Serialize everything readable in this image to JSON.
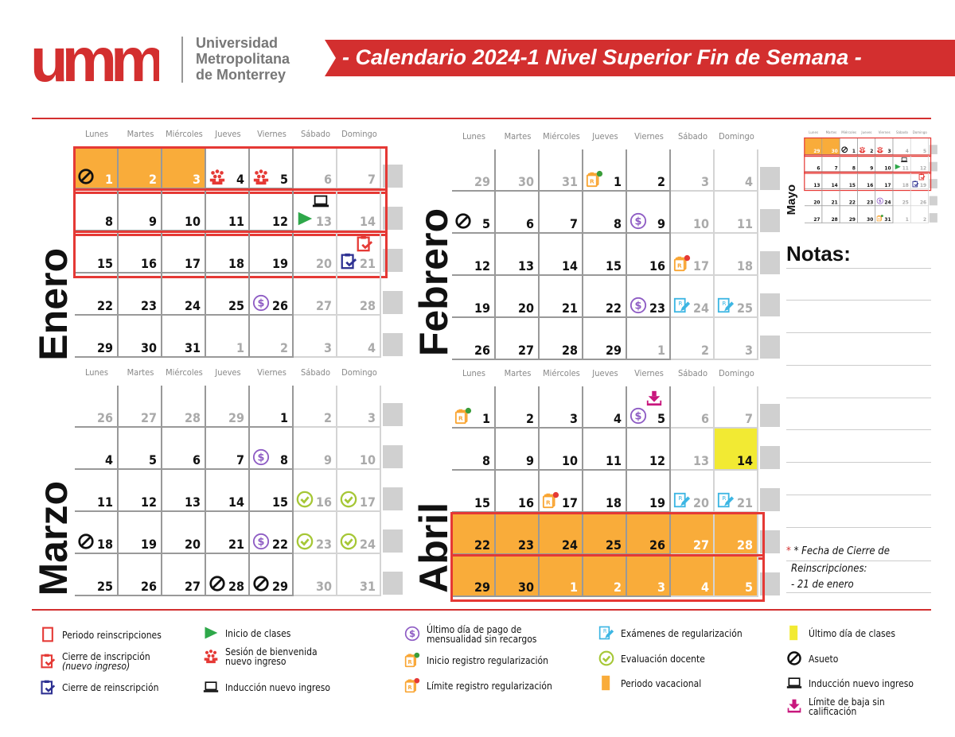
{
  "header": {
    "logo_text": "umm",
    "university": [
      "Universidad",
      "Metropolitana",
      "de Monterrey"
    ],
    "title": "- Calendario 2024-1 Nivel Superior Fin de Semana -"
  },
  "colors": {
    "brand_red": "#d32f2f",
    "vacation": "#f9ac3a",
    "last_day": "#f2ea33",
    "reinscription_outline": "#e53935"
  },
  "weekdays": [
    "Lunes",
    "Martes",
    "Miércoles",
    "Jueves",
    "Viernes",
    "Sábado",
    "Domingo"
  ],
  "months": [
    {
      "name": "Enero",
      "weeks": [
        {
          "reinsc": true,
          "days": [
            {
              "d": "1",
              "tone": "white",
              "fill": "vac",
              "icons": [
                "asueto"
              ]
            },
            {
              "d": "2",
              "tone": "white",
              "fill": "vac"
            },
            {
              "d": "3",
              "tone": "white",
              "fill": "vac"
            },
            {
              "d": "4",
              "icons": [
                "bienvenida"
              ]
            },
            {
              "d": "5",
              "icons": [
                "bienvenida"
              ]
            },
            {
              "d": "6",
              "tone": "gray"
            },
            {
              "d": "7",
              "tone": "gray"
            }
          ]
        },
        {
          "reinsc": true,
          "days": [
            {
              "d": "8"
            },
            {
              "d": "9"
            },
            {
              "d": "10"
            },
            {
              "d": "11"
            },
            {
              "d": "12"
            },
            {
              "d": "13",
              "tone": "gray",
              "icons": [
                "inicio-clases",
                "induccion"
              ]
            },
            {
              "d": "14",
              "tone": "gray"
            }
          ]
        },
        {
          "reinsc": true,
          "days": [
            {
              "d": "15"
            },
            {
              "d": "16"
            },
            {
              "d": "17"
            },
            {
              "d": "18"
            },
            {
              "d": "19"
            },
            {
              "d": "20",
              "tone": "gray"
            },
            {
              "d": "21",
              "tone": "gray",
              "icons": [
                "cierre-reinscripcion",
                "cierre-inscripcion"
              ]
            }
          ]
        },
        {
          "days": [
            {
              "d": "22"
            },
            {
              "d": "23"
            },
            {
              "d": "24"
            },
            {
              "d": "25"
            },
            {
              "d": "26",
              "icons": [
                "pago"
              ]
            },
            {
              "d": "27",
              "tone": "gray"
            },
            {
              "d": "28",
              "tone": "gray"
            }
          ]
        },
        {
          "days": [
            {
              "d": "29"
            },
            {
              "d": "30"
            },
            {
              "d": "31"
            },
            {
              "d": "1",
              "tone": "gray"
            },
            {
              "d": "2",
              "tone": "gray"
            },
            {
              "d": "3",
              "tone": "gray"
            },
            {
              "d": "4",
              "tone": "gray"
            }
          ]
        }
      ]
    },
    {
      "name": "Febrero",
      "weeks": [
        {
          "days": [
            {
              "d": "29",
              "tone": "gray"
            },
            {
              "d": "30",
              "tone": "gray"
            },
            {
              "d": "31",
              "tone": "gray"
            },
            {
              "d": "1",
              "icons": [
                "inicio-reg"
              ]
            },
            {
              "d": "2"
            },
            {
              "d": "3",
              "tone": "gray"
            },
            {
              "d": "4",
              "tone": "gray"
            }
          ]
        },
        {
          "days": [
            {
              "d": "5",
              "icons": [
                "asueto"
              ]
            },
            {
              "d": "6"
            },
            {
              "d": "7"
            },
            {
              "d": "8"
            },
            {
              "d": "9",
              "icons": [
                "pago"
              ]
            },
            {
              "d": "10",
              "tone": "gray"
            },
            {
              "d": "11",
              "tone": "gray"
            }
          ]
        },
        {
          "days": [
            {
              "d": "12"
            },
            {
              "d": "13"
            },
            {
              "d": "14"
            },
            {
              "d": "15"
            },
            {
              "d": "16"
            },
            {
              "d": "17",
              "tone": "gray",
              "icons": [
                "limite-reg"
              ]
            },
            {
              "d": "18",
              "tone": "gray"
            }
          ]
        },
        {
          "days": [
            {
              "d": "19"
            },
            {
              "d": "20"
            },
            {
              "d": "21"
            },
            {
              "d": "22"
            },
            {
              "d": "23",
              "icons": [
                "pago"
              ]
            },
            {
              "d": "24",
              "tone": "gray",
              "icons": [
                "examen"
              ]
            },
            {
              "d": "25",
              "tone": "gray",
              "icons": [
                "examen"
              ]
            }
          ]
        },
        {
          "days": [
            {
              "d": "26"
            },
            {
              "d": "27"
            },
            {
              "d": "28"
            },
            {
              "d": "29"
            },
            {
              "d": "1",
              "tone": "gray"
            },
            {
              "d": "2",
              "tone": "gray"
            },
            {
              "d": "3",
              "tone": "gray"
            }
          ]
        }
      ]
    },
    {
      "name": "Marzo",
      "weeks": [
        {
          "days": [
            {
              "d": "26",
              "tone": "gray"
            },
            {
              "d": "27",
              "tone": "gray"
            },
            {
              "d": "28",
              "tone": "gray"
            },
            {
              "d": "29",
              "tone": "gray"
            },
            {
              "d": "1"
            },
            {
              "d": "2",
              "tone": "gray"
            },
            {
              "d": "3",
              "tone": "gray"
            }
          ]
        },
        {
          "days": [
            {
              "d": "4"
            },
            {
              "d": "5"
            },
            {
              "d": "6"
            },
            {
              "d": "7"
            },
            {
              "d": "8",
              "icons": [
                "pago"
              ]
            },
            {
              "d": "9",
              "tone": "gray"
            },
            {
              "d": "10",
              "tone": "gray"
            }
          ]
        },
        {
          "days": [
            {
              "d": "11"
            },
            {
              "d": "12"
            },
            {
              "d": "13"
            },
            {
              "d": "14"
            },
            {
              "d": "15"
            },
            {
              "d": "16",
              "tone": "gray",
              "icons": [
                "evaluacion"
              ]
            },
            {
              "d": "17",
              "tone": "gray",
              "icons": [
                "evaluacion"
              ]
            }
          ]
        },
        {
          "days": [
            {
              "d": "18",
              "icons": [
                "asueto"
              ]
            },
            {
              "d": "19"
            },
            {
              "d": "20"
            },
            {
              "d": "21"
            },
            {
              "d": "22",
              "icons": [
                "pago"
              ]
            },
            {
              "d": "23",
              "tone": "gray",
              "icons": [
                "evaluacion"
              ]
            },
            {
              "d": "24",
              "tone": "gray",
              "icons": [
                "evaluacion"
              ]
            }
          ]
        },
        {
          "days": [
            {
              "d": "25"
            },
            {
              "d": "26"
            },
            {
              "d": "27"
            },
            {
              "d": "28",
              "icons": [
                "asueto"
              ]
            },
            {
              "d": "29",
              "icons": [
                "asueto"
              ]
            },
            {
              "d": "30",
              "tone": "gray"
            },
            {
              "d": "31",
              "tone": "gray"
            }
          ]
        }
      ]
    },
    {
      "name": "Abril",
      "weeks": [
        {
          "days": [
            {
              "d": "1",
              "icons": [
                "inicio-reg"
              ]
            },
            {
              "d": "2"
            },
            {
              "d": "3"
            },
            {
              "d": "4"
            },
            {
              "d": "5",
              "icons": [
                "pago",
                "baja"
              ]
            },
            {
              "d": "6",
              "tone": "gray"
            },
            {
              "d": "7",
              "tone": "gray"
            }
          ]
        },
        {
          "days": [
            {
              "d": "8"
            },
            {
              "d": "9"
            },
            {
              "d": "10"
            },
            {
              "d": "11"
            },
            {
              "d": "12"
            },
            {
              "d": "13",
              "tone": "gray"
            },
            {
              "d": "14",
              "fill": "last"
            }
          ]
        },
        {
          "days": [
            {
              "d": "15"
            },
            {
              "d": "16"
            },
            {
              "d": "17",
              "icons": [
                "limite-reg"
              ]
            },
            {
              "d": "18"
            },
            {
              "d": "19"
            },
            {
              "d": "20",
              "tone": "gray",
              "icons": [
                "examen"
              ]
            },
            {
              "d": "21",
              "tone": "gray",
              "icons": [
                "examen"
              ]
            }
          ]
        },
        {
          "reinsc": true,
          "days": [
            {
              "d": "22",
              "fill": "vac"
            },
            {
              "d": "23",
              "fill": "vac"
            },
            {
              "d": "24",
              "fill": "vac"
            },
            {
              "d": "25",
              "fill": "vac"
            },
            {
              "d": "26",
              "fill": "vac"
            },
            {
              "d": "27",
              "tone": "white",
              "fill": "vac"
            },
            {
              "d": "28",
              "tone": "white",
              "fill": "vac"
            }
          ]
        },
        {
          "reinsc": true,
          "days": [
            {
              "d": "29",
              "fill": "vac"
            },
            {
              "d": "30",
              "fill": "vac"
            },
            {
              "d": "1",
              "tone": "white",
              "fill": "vac"
            },
            {
              "d": "2",
              "tone": "white",
              "fill": "vac"
            },
            {
              "d": "3",
              "tone": "white",
              "fill": "vac"
            },
            {
              "d": "4",
              "tone": "white",
              "fill": "vac"
            },
            {
              "d": "5",
              "tone": "white",
              "fill": "vac"
            }
          ]
        }
      ]
    },
    {
      "name": "Mayo",
      "weeks": [
        {
          "reinsc": true,
          "days": [
            {
              "d": "29",
              "tone": "white",
              "fill": "vac"
            },
            {
              "d": "30",
              "tone": "white",
              "fill": "vac"
            },
            {
              "d": "1",
              "icons": [
                "asueto"
              ]
            },
            {
              "d": "2",
              "icons": [
                "bienvenida"
              ]
            },
            {
              "d": "3",
              "icons": [
                "bienvenida"
              ]
            },
            {
              "d": "4",
              "tone": "gray"
            },
            {
              "d": "5",
              "tone": "gray"
            }
          ]
        },
        {
          "reinsc": true,
          "days": [
            {
              "d": "6"
            },
            {
              "d": "7"
            },
            {
              "d": "8"
            },
            {
              "d": "9"
            },
            {
              "d": "10"
            },
            {
              "d": "11",
              "tone": "gray",
              "icons": [
                "inicio-clases",
                "induccion"
              ]
            },
            {
              "d": "12",
              "tone": "gray"
            }
          ]
        },
        {
          "reinsc": true,
          "days": [
            {
              "d": "13"
            },
            {
              "d": "14"
            },
            {
              "d": "15"
            },
            {
              "d": "16"
            },
            {
              "d": "17"
            },
            {
              "d": "18",
              "tone": "gray"
            },
            {
              "d": "19",
              "tone": "gray",
              "icons": [
                "cierre-reinscripcion",
                "cierre-inscripcion"
              ]
            }
          ]
        },
        {
          "days": [
            {
              "d": "20"
            },
            {
              "d": "21"
            },
            {
              "d": "22"
            },
            {
              "d": "23"
            },
            {
              "d": "24",
              "icons": [
                "pago"
              ]
            },
            {
              "d": "25",
              "tone": "gray"
            },
            {
              "d": "26",
              "tone": "gray"
            }
          ]
        },
        {
          "days": [
            {
              "d": "27"
            },
            {
              "d": "28"
            },
            {
              "d": "29"
            },
            {
              "d": "30"
            },
            {
              "d": "31",
              "icons": [
                "inicio-reg"
              ]
            },
            {
              "d": "1",
              "tone": "gray"
            },
            {
              "d": "2",
              "tone": "gray"
            }
          ]
        }
      ]
    }
  ],
  "notes": {
    "title": "Notas:",
    "footnote": [
      "* Fecha de Cierre de",
      "Reinscripciones:",
      "- 21 de enero"
    ]
  },
  "legend": [
    {
      "icon": "reinsc-box",
      "label": "Periodo reinscripciones"
    },
    {
      "icon": "cierre-inscripcion",
      "label": "Cierre de inscripción",
      "sub": "(nuevo ingreso)"
    },
    {
      "icon": "cierre-reinscripcion",
      "label": "Cierre de reinscripción"
    },
    {
      "icon": "inicio-clases",
      "label": "Inicio de clases"
    },
    {
      "icon": "bienvenida",
      "label": "Sesión de bienvenida",
      "sub": "nuevo ingreso"
    },
    {
      "icon": "induccion",
      "label": "Inducción nuevo ingreso"
    },
    {
      "icon": "pago",
      "label": "Último día de pago de",
      "sub": "mensualidad sin recargos"
    },
    {
      "icon": "inicio-reg",
      "label": "Inicio registro regularización"
    },
    {
      "icon": "limite-reg",
      "label": "Límite registro regularización"
    },
    {
      "icon": "examen",
      "label": "Exámenes de regularización"
    },
    {
      "icon": "evaluacion",
      "label": "Evaluación docente"
    },
    {
      "icon": "vac-box",
      "label": "Periodo vacacional"
    },
    {
      "icon": "last-box",
      "label": "Último día de clases"
    },
    {
      "icon": "asueto",
      "label": "Asueto"
    },
    {
      "icon": "induccion",
      "label": "Inducción nuevo ingreso"
    },
    {
      "icon": "baja",
      "label": "Límite de baja sin",
      "sub": "calificación"
    }
  ]
}
